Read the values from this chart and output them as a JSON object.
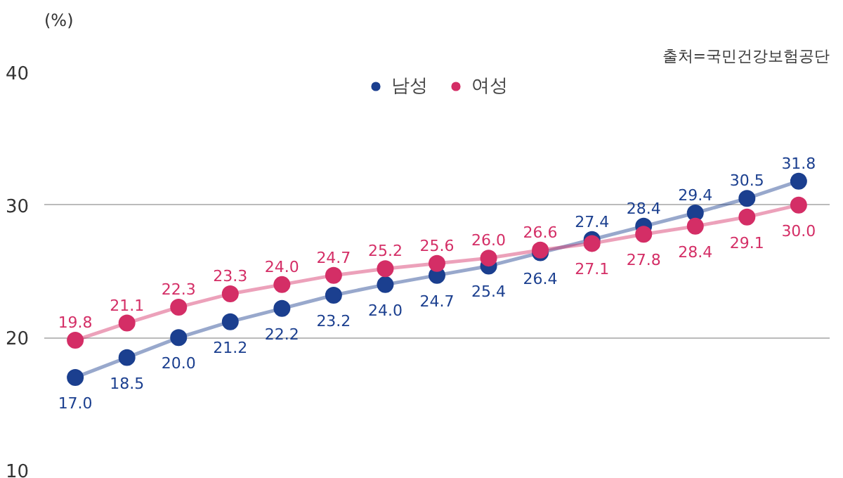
{
  "chart_data": {
    "type": "line",
    "ylabel": "(%)",
    "annotations": [
      "출처=국민건강보험공단"
    ],
    "categories": [
      null,
      null,
      null,
      null,
      null,
      null,
      null,
      null,
      null,
      null,
      null,
      null,
      null,
      null,
      null
    ],
    "series": [
      {
        "name": "남성",
        "color": "#1b3f8f",
        "values": [
          17.0,
          18.5,
          20.0,
          21.2,
          22.2,
          23.2,
          24.0,
          24.7,
          25.4,
          26.4,
          27.4,
          28.4,
          29.4,
          30.5,
          31.8
        ],
        "value_labels": [
          "17.0",
          "18.5",
          "20.0",
          "21.2",
          "22.2",
          "23.2",
          "24.0",
          "24.7",
          "25.4",
          "26.4",
          "27.4",
          "28.4",
          "29.4",
          "30.5",
          "31.8"
        ]
      },
      {
        "name": "여성",
        "color": "#d42e66",
        "values": [
          19.8,
          21.1,
          22.3,
          23.3,
          24.0,
          24.7,
          25.2,
          25.6,
          26.0,
          26.6,
          27.1,
          27.8,
          28.4,
          29.1,
          30.0
        ],
        "value_labels": [
          "19.8",
          "21.1",
          "22.3",
          "23.3",
          "24.0",
          "24.7",
          "25.2",
          "25.6",
          "26.0",
          "26.6",
          "27.1",
          "27.8",
          "28.4",
          "29.1",
          "30.0"
        ]
      }
    ],
    "ylim": [
      10,
      40
    ],
    "yticks": [
      10,
      20,
      30,
      40
    ],
    "grid": "y",
    "legend": "top",
    "marker": "circle"
  }
}
